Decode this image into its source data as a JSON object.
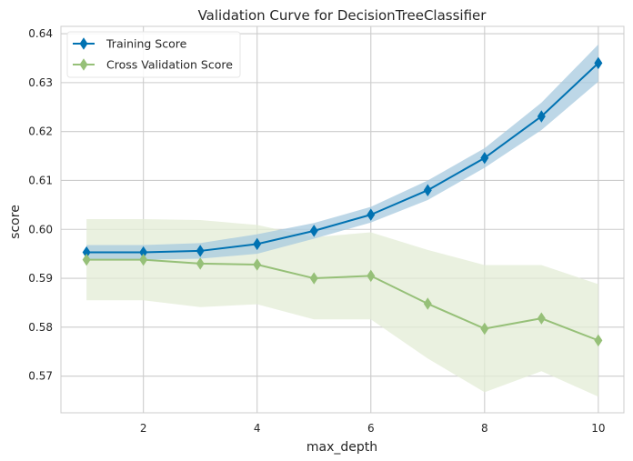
{
  "chart_data": {
    "type": "line",
    "title": "Validation Curve for DecisionTreeClassifier",
    "xlabel": "max_depth",
    "ylabel": "score",
    "xlim": [
      0.55,
      10.45
    ],
    "ylim": [
      0.5625,
      0.6415
    ],
    "xticks": [
      2,
      4,
      6,
      8,
      10
    ],
    "yticks": [
      0.57,
      0.58,
      0.59,
      0.6,
      0.61,
      0.62,
      0.63,
      0.64
    ],
    "ytick_labels": [
      "0.57",
      "0.58",
      "0.59",
      "0.60",
      "0.61",
      "0.62",
      "0.63",
      "0.64"
    ],
    "grid": true,
    "legend_position": "top-left",
    "x": [
      1,
      2,
      3,
      4,
      5,
      6,
      7,
      8,
      9,
      10
    ],
    "series": [
      {
        "name": "Training Score",
        "color": "#0072b2",
        "band_color": "#a7c9df",
        "values": [
          0.5953,
          0.5953,
          0.5956,
          0.597,
          0.5997,
          0.603,
          0.608,
          0.6146,
          0.6231,
          0.634
        ],
        "lower": [
          0.5938,
          0.5938,
          0.594,
          0.595,
          0.5981,
          0.6014,
          0.606,
          0.6126,
          0.6203,
          0.6302
        ],
        "upper": [
          0.5968,
          0.5968,
          0.5972,
          0.599,
          0.6013,
          0.6046,
          0.61,
          0.6166,
          0.6259,
          0.6378
        ]
      },
      {
        "name": "Cross Validation Score",
        "color": "#96c078",
        "band_color": "#e3ecd6",
        "values": [
          0.5938,
          0.5938,
          0.593,
          0.5928,
          0.59,
          0.5905,
          0.5848,
          0.5797,
          0.5818,
          0.5773
        ],
        "lower": [
          0.5855,
          0.5855,
          0.5841,
          0.5847,
          0.5816,
          0.5816,
          0.5736,
          0.5667,
          0.571,
          0.5658
        ],
        "upper": [
          0.6021,
          0.6021,
          0.6019,
          0.6009,
          0.5984,
          0.5994,
          0.5958,
          0.5927,
          0.5927,
          0.5888
        ]
      }
    ]
  }
}
